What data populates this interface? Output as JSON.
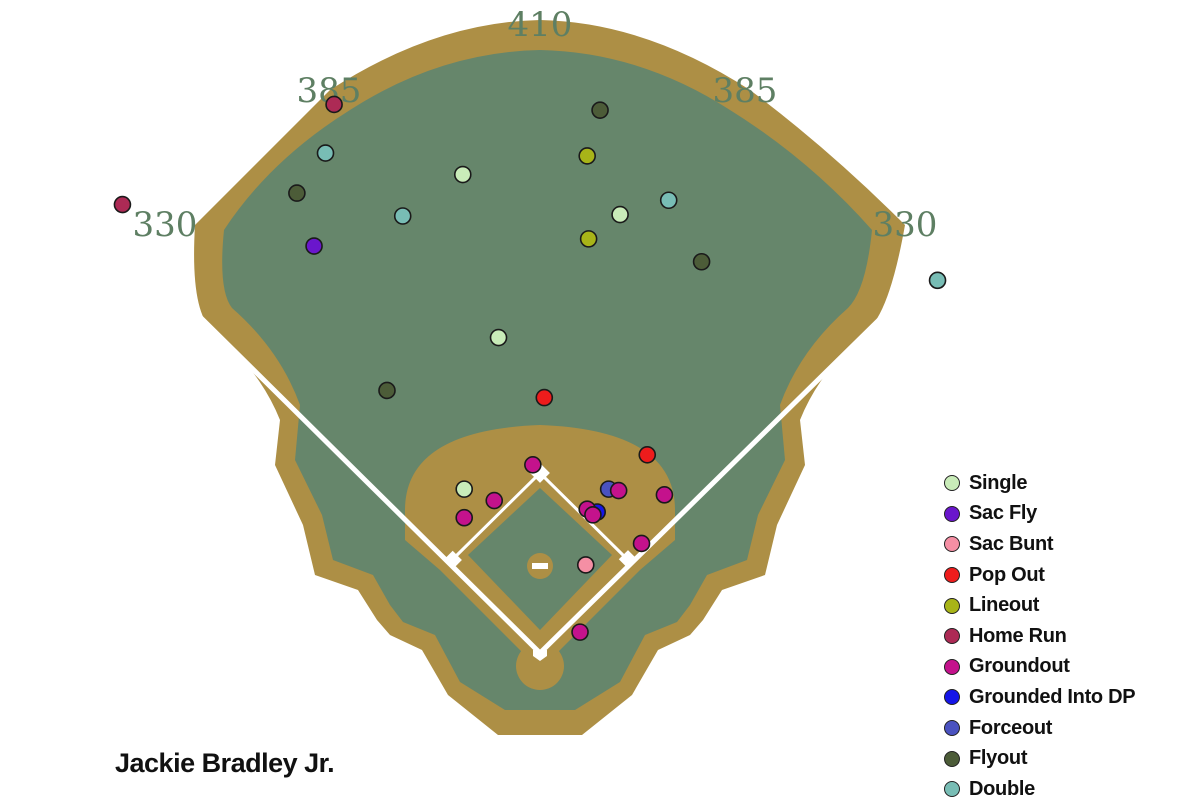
{
  "chart_data": {
    "type": "scatter",
    "player": "Jackie Bradley Jr.",
    "distances": {
      "left_line": "330",
      "left_center": "385",
      "center": "410",
      "right_center": "385",
      "right_line": "330"
    },
    "field_colors": {
      "grass": "#66866b",
      "dirt": "#ad8f45",
      "lines": "#ffffff"
    },
    "legend_placement": "bottom-right",
    "legend": [
      {
        "label": "Single",
        "color": "#c9ecb9"
      },
      {
        "label": "Sac Fly",
        "color": "#6a16cc"
      },
      {
        "label": "Sac Bunt",
        "color": "#f58fa4"
      },
      {
        "label": "Pop Out",
        "color": "#ee1c1c"
      },
      {
        "label": "Lineout",
        "color": "#a8b418"
      },
      {
        "label": "Home Run",
        "color": "#ad2a55"
      },
      {
        "label": "Groundout",
        "color": "#c4128c"
      },
      {
        "label": "Grounded Into DP",
        "color": "#1515e8"
      },
      {
        "label": "Forceout",
        "color": "#4a52c0"
      },
      {
        "label": "Flyout",
        "color": "#4c5c38"
      },
      {
        "label": "Double",
        "color": "#78bdb5"
      }
    ],
    "units": "feet from home plate (x: toward right field, y: toward center field)",
    "points": [
      {
        "type": "Home Run",
        "x": -292,
        "y": 315
      },
      {
        "type": "Home Run",
        "x": -144,
        "y": 385
      },
      {
        "type": "Flyout",
        "x": 42,
        "y": 381
      },
      {
        "type": "Double",
        "x": -150,
        "y": 351
      },
      {
        "type": "Lineout",
        "x": 33,
        "y": 349
      },
      {
        "type": "Single",
        "x": -54,
        "y": 336
      },
      {
        "type": "Flyout",
        "x": -170,
        "y": 323
      },
      {
        "type": "Double",
        "x": 90,
        "y": 318
      },
      {
        "type": "Double",
        "x": -96,
        "y": 307
      },
      {
        "type": "Single",
        "x": 56,
        "y": 308
      },
      {
        "type": "Lineout",
        "x": 34,
        "y": 291
      },
      {
        "type": "Sac Fly",
        "x": -158,
        "y": 286
      },
      {
        "type": "Flyout",
        "x": 113,
        "y": 275
      },
      {
        "type": "Double",
        "x": 278,
        "y": 262
      },
      {
        "type": "Single",
        "x": -29,
        "y": 222
      },
      {
        "type": "Flyout",
        "x": -107,
        "y": 185
      },
      {
        "type": "Pop Out",
        "x": 3,
        "y": 180
      },
      {
        "type": "Pop Out",
        "x": 75,
        "y": 140
      },
      {
        "type": "Groundout",
        "x": -5,
        "y": 133
      },
      {
        "type": "Single",
        "x": -53,
        "y": 116
      },
      {
        "type": "Groundout",
        "x": -32,
        "y": 108
      },
      {
        "type": "Groundout",
        "x": -53,
        "y": 96
      },
      {
        "type": "Forceout",
        "x": 48,
        "y": 116
      },
      {
        "type": "Groundout",
        "x": 55,
        "y": 115
      },
      {
        "type": "Groundout",
        "x": 87,
        "y": 112
      },
      {
        "type": "Grounded Into DP",
        "x": 40,
        "y": 100
      },
      {
        "type": "Groundout",
        "x": 33,
        "y": 102
      },
      {
        "type": "Groundout",
        "x": 37,
        "y": 98
      },
      {
        "type": "Groundout",
        "x": 71,
        "y": 78
      },
      {
        "type": "Sac Bunt",
        "x": 32,
        "y": 63
      },
      {
        "type": "Groundout",
        "x": 28,
        "y": 16
      }
    ]
  }
}
